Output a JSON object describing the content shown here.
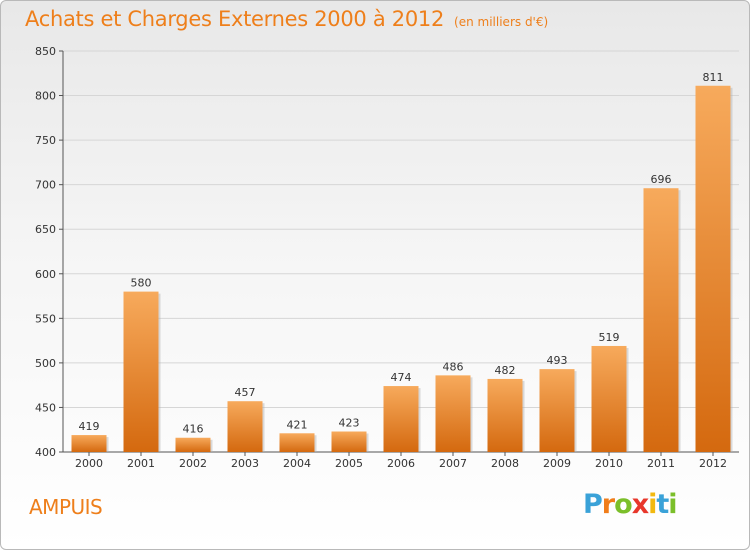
{
  "title": "Achats et Charges Externes 2000 à 2012",
  "unit": "(en milliers d'€)",
  "commune": "AMPUIS",
  "logo": {
    "letters": [
      "P",
      "r",
      "o",
      "x",
      "i",
      "t",
      "i"
    ],
    "colors": [
      "#3aa2d8",
      "#f07d1a",
      "#7bbf2a",
      "#e8372b",
      "#f2b90f",
      "#3aa2d8",
      "#7bbf2a"
    ]
  },
  "colors": {
    "bar_top": "#f7aa5c",
    "bar_bottom": "#d4690f",
    "accent": "#ee7f1b"
  },
  "chart_data": {
    "type": "bar",
    "categories": [
      "2000",
      "2001",
      "2002",
      "2003",
      "2004",
      "2005",
      "2006",
      "2007",
      "2008",
      "2009",
      "2010",
      "2011",
      "2012"
    ],
    "values": [
      419,
      580,
      416,
      457,
      421,
      423,
      474,
      486,
      482,
      493,
      519,
      696,
      811
    ],
    "ylim": [
      400,
      850
    ],
    "yticks": [
      400,
      450,
      500,
      550,
      600,
      650,
      700,
      750,
      800,
      850
    ],
    "grid": true
  }
}
